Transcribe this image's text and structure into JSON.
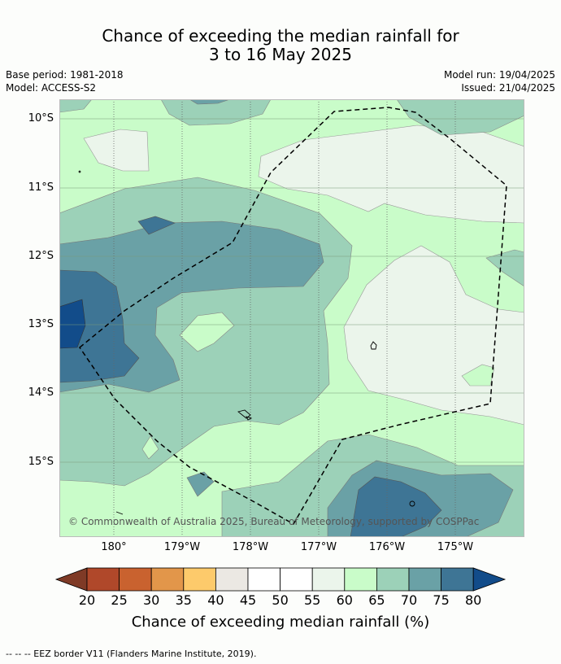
{
  "title": {
    "line1": "Chance of exceeding the median rainfall for",
    "line2": "3 to 16 May 2025"
  },
  "meta": {
    "base_period": "Base period: 1981-2018",
    "model": "Model: ACCESS-S2",
    "model_run": "Model run: 19/04/2025",
    "issued": "Issued: 21/04/2025"
  },
  "map": {
    "lat_labels": [
      "10°S",
      "11°S",
      "12°S",
      "13°S",
      "14°S",
      "15°S"
    ],
    "lon_labels": [
      "180°",
      "179°W",
      "178°W",
      "177°W",
      "176°W",
      "175°W"
    ],
    "copyright": "© Commonwealth of Australia 2025, Bureau of Meteorology, supported by COSPPac",
    "boundary_style": "dashed black line",
    "background_level_color": "#c9fcc9"
  },
  "colorbar": {
    "labels": [
      "20",
      "25",
      "30",
      "35",
      "40",
      "45",
      "50",
      "55",
      "60",
      "65",
      "70",
      "75",
      "80"
    ],
    "colors": [
      "#7f3a26",
      "#b0482a",
      "#c9622f",
      "#e2964a",
      "#fdca6b",
      "#ebe8e3",
      "#ffffff",
      "#ffffff",
      "#ebf5eb",
      "#c9fcc9",
      "#9cd1b8",
      "#6aa1a6",
      "#3e7595",
      "#124c8a"
    ],
    "title": "Chance of exceeding median rainfall (%)"
  },
  "footer": {
    "legend": "--  --  -- EEZ border V11 (Flanders Marine Institute, 2019)."
  }
}
